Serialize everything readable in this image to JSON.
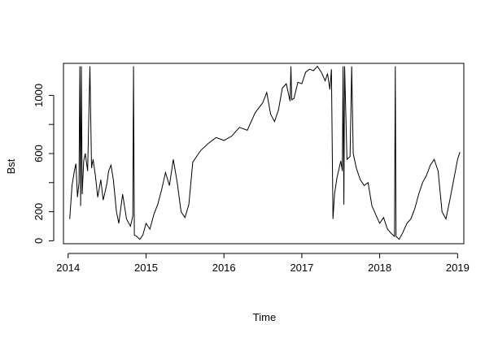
{
  "chart_data": {
    "type": "line",
    "title": "",
    "xlabel": "Time",
    "ylabel": "Bst",
    "xlim": [
      2013.94,
      2019.08
    ],
    "ylim": [
      -20,
      1220
    ],
    "x_ticks": [
      2014,
      2015,
      2016,
      2017,
      2018,
      2019
    ],
    "x_tick_labels": [
      "2014",
      "2015",
      "2016",
      "2017",
      "2018",
      "2019"
    ],
    "y_ticks": [
      0,
      200,
      600,
      1000
    ],
    "y_tick_labels": [
      "0",
      "200",
      "600",
      "1000"
    ],
    "grid": false,
    "legend": "none",
    "line_color": "#000000",
    "series": [
      {
        "x": [
          2014.02,
          2014.05,
          2014.08,
          2014.1,
          2014.12,
          2014.14,
          2014.15,
          2014.16,
          2014.17,
          2014.18,
          2014.2,
          2014.22,
          2014.25,
          2014.28,
          2014.3,
          2014.32,
          2014.35,
          2014.38,
          2014.42,
          2014.45,
          2014.48,
          2014.5,
          2014.52,
          2014.55,
          2014.58,
          2014.62,
          2014.65,
          2014.7,
          2014.75,
          2014.8,
          2014.83,
          2014.84,
          2014.85,
          2014.88,
          2014.92,
          2014.96,
          2015.0,
          2015.05,
          2015.1,
          2015.15,
          2015.2,
          2015.25,
          2015.3,
          2015.35,
          2015.4,
          2015.45,
          2015.5,
          2015.55,
          2015.6,
          2015.7,
          2015.8,
          2015.9,
          2016.0,
          2016.1,
          2016.2,
          2016.3,
          2016.4,
          2016.5,
          2016.55,
          2016.6,
          2016.65,
          2016.7,
          2016.75,
          2016.8,
          2016.85,
          2016.86,
          2016.87,
          2016.9,
          2016.95,
          2017.0,
          2017.05,
          2017.1,
          2017.15,
          2017.2,
          2017.25,
          2017.3,
          2017.33,
          2017.36,
          2017.38,
          2017.4,
          2017.42,
          2017.45,
          2017.5,
          2017.52,
          2017.53,
          2017.54,
          2017.55,
          2017.58,
          2017.62,
          2017.64,
          2017.66,
          2017.7,
          2017.75,
          2017.8,
          2017.85,
          2017.9,
          2017.95,
          2018.0,
          2018.05,
          2018.1,
          2018.15,
          2018.19,
          2018.2,
          2018.21,
          2018.25,
          2018.3,
          2018.35,
          2018.4,
          2018.45,
          2018.5,
          2018.55,
          2018.6,
          2018.65,
          2018.7,
          2018.75,
          2018.8,
          2018.85,
          2018.9,
          2018.95,
          2019.0,
          2019.03
        ],
        "values": [
          150,
          380,
          480,
          530,
          300,
          400,
          1200,
          240,
          1200,
          320,
          550,
          600,
          480,
          1200,
          500,
          560,
          450,
          300,
          420,
          280,
          350,
          400,
          480,
          520,
          420,
          200,
          120,
          320,
          150,
          100,
          170,
          1200,
          40,
          30,
          10,
          40,
          120,
          80,
          180,
          250,
          350,
          470,
          380,
          560,
          400,
          200,
          160,
          250,
          540,
          620,
          670,
          710,
          690,
          720,
          780,
          760,
          880,
          950,
          1020,
          870,
          820,
          900,
          1050,
          1080,
          960,
          1200,
          970,
          980,
          1090,
          1080,
          1160,
          1180,
          1170,
          1200,
          1160,
          1100,
          1150,
          1040,
          1180,
          150,
          320,
          430,
          550,
          480,
          1200,
          250,
          1200,
          560,
          580,
          1200,
          600,
          500,
          420,
          380,
          400,
          240,
          180,
          120,
          160,
          80,
          50,
          30,
          1200,
          30,
          10,
          60,
          120,
          150,
          220,
          320,
          400,
          450,
          520,
          560,
          480,
          200,
          150,
          280,
          420,
          560,
          610
        ]
      }
    ]
  }
}
